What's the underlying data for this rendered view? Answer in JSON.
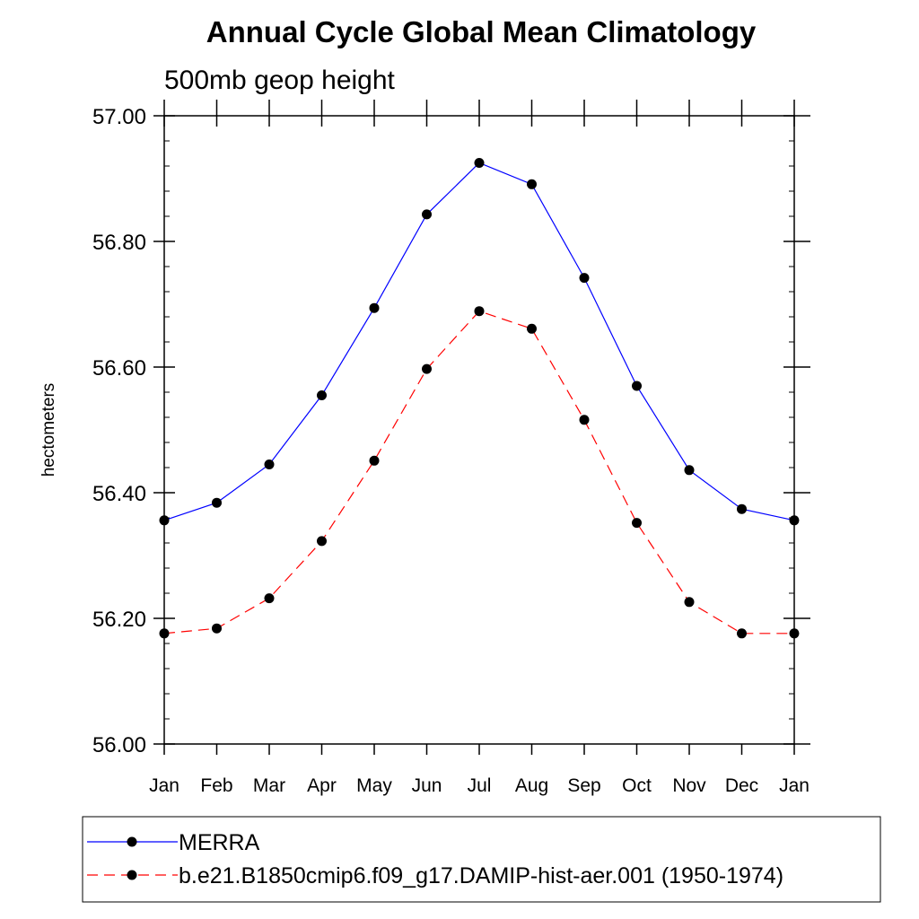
{
  "chart_data": {
    "type": "line",
    "title": "Annual Cycle Global Mean Climatology",
    "subtitle": "500mb geop height",
    "ylabel": "hectometers",
    "xlabel": "",
    "categories": [
      "Jan",
      "Feb",
      "Mar",
      "Apr",
      "May",
      "Jun",
      "Jul",
      "Aug",
      "Sep",
      "Oct",
      "Nov",
      "Dec",
      "Jan"
    ],
    "ylim": [
      56.0,
      57.0
    ],
    "yticks": [
      "56.00",
      "56.20",
      "56.40",
      "56.60",
      "56.80",
      "57.00"
    ],
    "grid": false,
    "legend_position": "bottom",
    "series": [
      {
        "name": "MERRA",
        "color": "#0000ff",
        "dash": "solid",
        "values": [
          56.356,
          56.384,
          56.445,
          56.555,
          56.694,
          56.843,
          56.925,
          56.891,
          56.742,
          56.57,
          56.436,
          56.374,
          56.356
        ]
      },
      {
        "name": "b.e21.B1850cmip6.f09_g17.DAMIP-hist-aer.001 (1950-1974)",
        "color": "#ff0000",
        "dash": "dashed",
        "values": [
          56.176,
          56.184,
          56.232,
          56.323,
          56.451,
          56.597,
          56.689,
          56.661,
          56.516,
          56.352,
          56.226,
          56.176,
          56.176
        ]
      }
    ]
  }
}
